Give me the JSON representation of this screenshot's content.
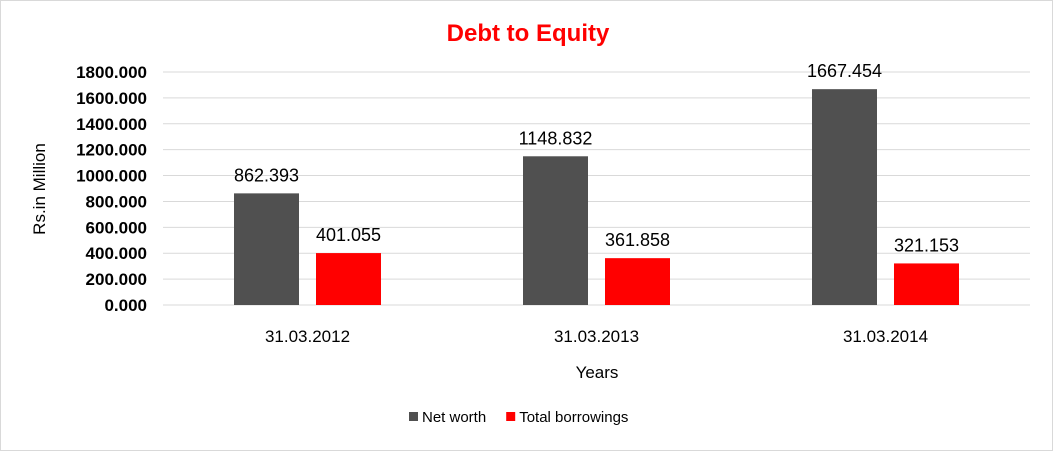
{
  "chart_data": {
    "type": "bar",
    "title": "Debt to Equity",
    "xlabel": "Years",
    "ylabel": "Rs.in Million",
    "categories": [
      "31.03.2012",
      "31.03.2013",
      "31.03.2014"
    ],
    "series": [
      {
        "name": "Net worth",
        "color": "#505050",
        "values": [
          862.393,
          1148.832,
          1667.454
        ],
        "labels": [
          "862.393",
          "1148.832",
          "1667.454"
        ]
      },
      {
        "name": "Total borrowings",
        "color": "#ff0000",
        "values": [
          401.055,
          361.858,
          321.153
        ],
        "labels": [
          "401.055",
          "361.858",
          "321.153"
        ]
      }
    ],
    "ylim": [
      0,
      1800
    ],
    "yticks": [
      "0.000",
      "200.000",
      "400.000",
      "600.000",
      "800.000",
      "1000.000",
      "1200.000",
      "1400.000",
      "1600.000",
      "1800.000"
    ],
    "grid": true,
    "legend_position": "bottom",
    "title_color": "#ff0000"
  }
}
